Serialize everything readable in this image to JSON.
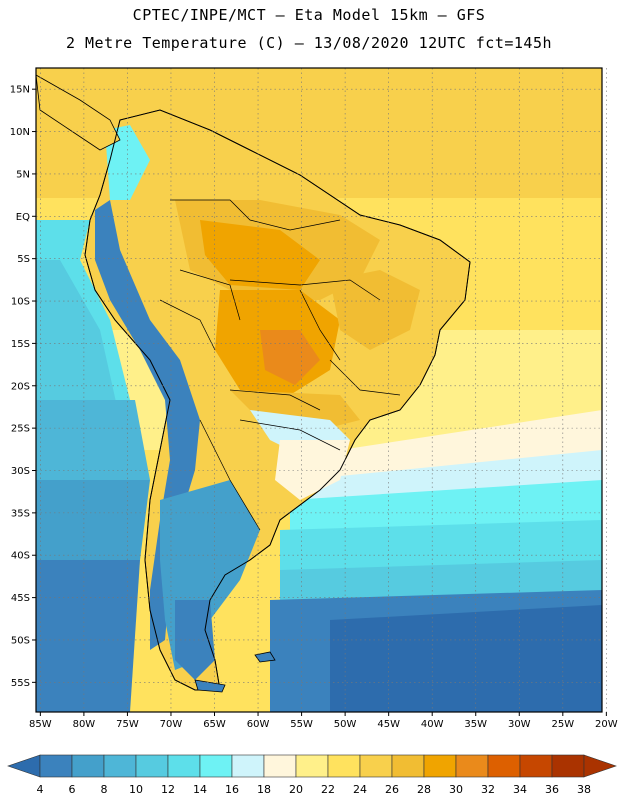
{
  "header": {
    "line1": "CPTEC/INPE/MCT –  Eta Model 15km – GFS",
    "line2": "2 Metre Temperature (C) – 13/08/2020 12UTC fct=145h"
  },
  "map": {
    "lat_labels": [
      "15N",
      "10N",
      "5N",
      "EQ",
      "5S",
      "10S",
      "15S",
      "20S",
      "25S",
      "30S",
      "35S",
      "40S",
      "45S",
      "50S",
      "55S"
    ],
    "lon_labels": [
      "85W",
      "80W",
      "75W",
      "70W",
      "65W",
      "60W",
      "55W",
      "50W",
      "45W",
      "40W",
      "35W",
      "30W",
      "25W",
      "20W"
    ],
    "lat_range": [
      17.5,
      -58.5
    ],
    "lon_range": [
      -85.5,
      -20.5
    ],
    "grid": "dotted"
  },
  "colorbar": {
    "levels": [
      "4",
      "6",
      "8",
      "10",
      "12",
      "14",
      "16",
      "18",
      "20",
      "22",
      "24",
      "26",
      "28",
      "30",
      "32",
      "34",
      "36",
      "38"
    ],
    "colors": [
      "#2d6cad",
      "#3b82bd",
      "#44a0cb",
      "#4eb6d7",
      "#56cbe0",
      "#5ddfea",
      "#6ef2f4",
      "#cff4fb",
      "#fff6dc",
      "#fff08a",
      "#ffe25e",
      "#f8d04c",
      "#f1bd33",
      "#f0a400",
      "#ea8a1b",
      "#dd6000",
      "#c64700",
      "#aa3300"
    ]
  }
}
